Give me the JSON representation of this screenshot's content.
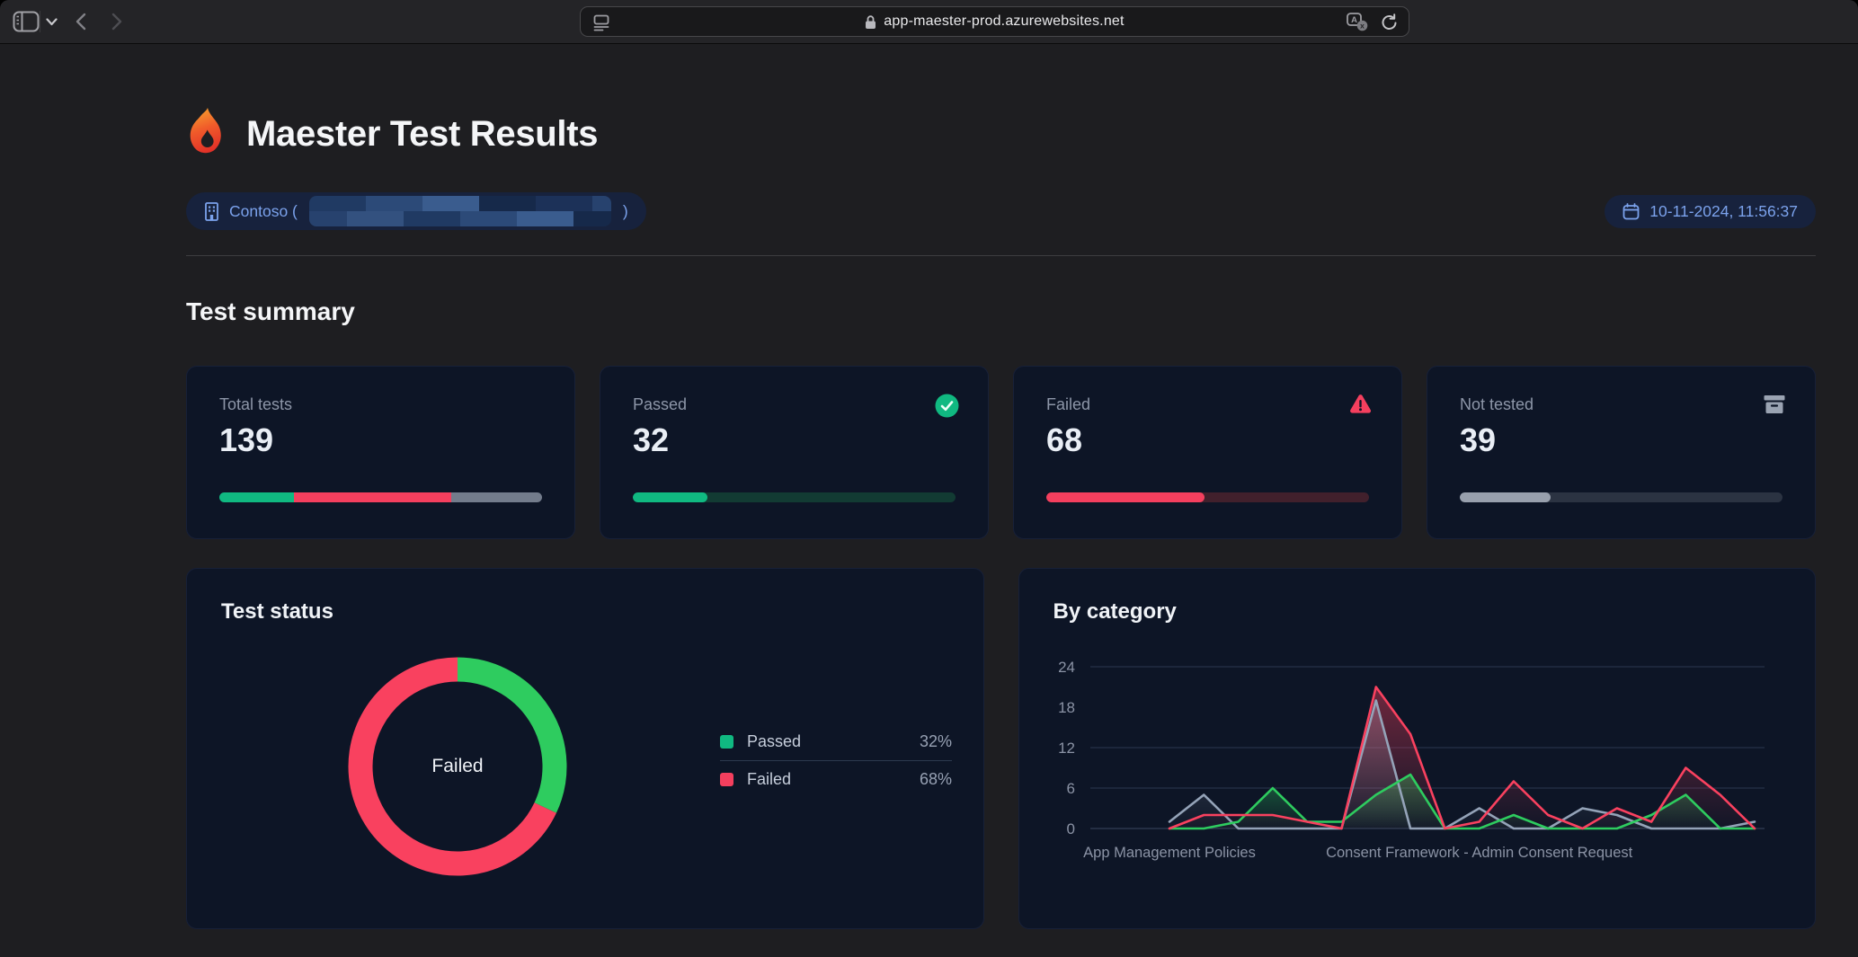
{
  "browser": {
    "url": "app-maester-prod.azurewebsites.net",
    "icons": [
      "sidebar-toggle-icon",
      "chevron-down-icon",
      "back-icon",
      "forward-icon",
      "reader-icon",
      "lock-icon",
      "translate-icon",
      "reload-icon"
    ]
  },
  "header": {
    "title": "Maester Test Results",
    "tenant_prefix": "Contoso (",
    "tenant_suffix": ")",
    "tenant_redacted": true,
    "timestamp": "10-11-2024, 11:56:37",
    "icons": [
      "flame-icon",
      "building-icon",
      "calendar-icon"
    ]
  },
  "summary": {
    "heading": "Test summary",
    "cards": [
      {
        "label": "Total tests",
        "value": "139",
        "icon": null,
        "bar": {
          "track": "transparent",
          "segments": [
            {
              "color": "#10b981",
              "pct": 23
            },
            {
              "color": "#f43f5e",
              "pct": 49
            },
            {
              "color": "#737c8c",
              "pct": 28
            }
          ]
        }
      },
      {
        "label": "Passed",
        "value": "32",
        "icon": "check-circle-icon",
        "bar": {
          "track": "#123b33",
          "segments": [
            {
              "color": "#10b981",
              "pct": 23
            }
          ]
        }
      },
      {
        "label": "Failed",
        "value": "68",
        "icon": "warning-triangle-icon",
        "bar": {
          "track": "#41202c",
          "segments": [
            {
              "color": "#f43f5e",
              "pct": 49
            }
          ]
        }
      },
      {
        "label": "Not tested",
        "value": "39",
        "icon": "archive-box-icon",
        "bar": {
          "track": "#2b3342",
          "segments": [
            {
              "color": "#98a0ad",
              "pct": 28
            }
          ]
        }
      }
    ]
  },
  "status": {
    "heading": "Test status",
    "center_label": "Failed",
    "legend": [
      {
        "label": "Passed",
        "pct_text": "32%",
        "color": "#10b981"
      },
      {
        "label": "Failed",
        "pct_text": "68%",
        "color": "#f43f5e"
      }
    ]
  },
  "category": {
    "heading": "By category"
  },
  "chart_data": [
    {
      "type": "pie",
      "donut": true,
      "title": "Test status",
      "labels": [
        "Passed",
        "Failed"
      ],
      "values": [
        32,
        68
      ],
      "unit": "%",
      "colors": [
        "#2ecc5f",
        "#f9415f"
      ],
      "center_label": "Failed",
      "legend_position": "right"
    },
    {
      "type": "line",
      "title": "By category",
      "x": [
        0,
        1,
        2,
        3,
        4,
        5,
        6,
        7,
        8,
        9,
        10,
        11,
        12,
        13,
        14,
        15,
        16,
        17
      ],
      "x_axis_labels": [
        {
          "index": 0,
          "label": "App Management Policies"
        },
        {
          "index": 9,
          "label": "Consent Framework - Admin Consent Request"
        }
      ],
      "series": [
        {
          "name": "Not tested",
          "color": "#94a3b8",
          "values": [
            1,
            5,
            0,
            0,
            0,
            0,
            19,
            0,
            0,
            3,
            0,
            0,
            3,
            2,
            0,
            0,
            0,
            1
          ]
        },
        {
          "name": "Passed",
          "color": "#2ecc5f",
          "values": [
            0,
            0,
            1,
            6,
            1,
            1,
            5,
            8,
            0,
            0,
            2,
            0,
            0,
            0,
            2,
            5,
            0,
            0
          ]
        },
        {
          "name": "Failed",
          "color": "#f9415f",
          "values": [
            0,
            2,
            2,
            2,
            1,
            0,
            21,
            14,
            0,
            1,
            7,
            2,
            0,
            3,
            1,
            9,
            5,
            0
          ]
        }
      ],
      "ylim": [
        0,
        24
      ],
      "yticks": [
        0,
        6,
        12,
        18,
        24
      ],
      "gridlines_at": [
        0,
        6,
        12,
        24
      ],
      "grid": true,
      "legend_position": "none"
    }
  ]
}
